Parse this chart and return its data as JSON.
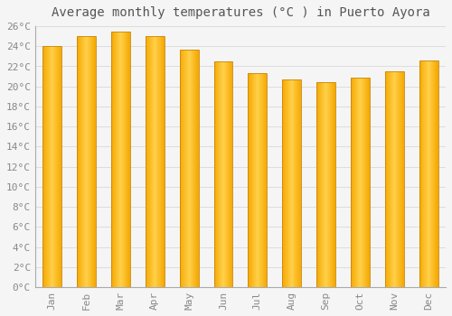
{
  "title": "Average monthly temperatures (°C ) in Puerto Ayora",
  "months": [
    "Jan",
    "Feb",
    "Mar",
    "Apr",
    "May",
    "Jun",
    "Jul",
    "Aug",
    "Sep",
    "Oct",
    "Nov",
    "Dec"
  ],
  "values": [
    24.0,
    25.0,
    25.5,
    25.0,
    23.7,
    22.5,
    21.3,
    20.7,
    20.4,
    20.9,
    21.5,
    22.6
  ],
  "bar_color_center": "#FFD04A",
  "bar_color_edge": "#F5A800",
  "bar_outline_color": "#C8870A",
  "ylim": [
    0,
    26
  ],
  "yticks": [
    0,
    2,
    4,
    6,
    8,
    10,
    12,
    14,
    16,
    18,
    20,
    22,
    24,
    26
  ],
  "ytick_labels": [
    "0°C",
    "2°C",
    "4°C",
    "6°C",
    "8°C",
    "10°C",
    "12°C",
    "14°C",
    "16°C",
    "18°C",
    "20°C",
    "22°C",
    "24°C",
    "26°C"
  ],
  "background_color": "#f5f5f5",
  "grid_color": "#dddddd",
  "title_fontsize": 10,
  "tick_fontsize": 8,
  "font_family": "monospace",
  "bar_width": 0.55
}
